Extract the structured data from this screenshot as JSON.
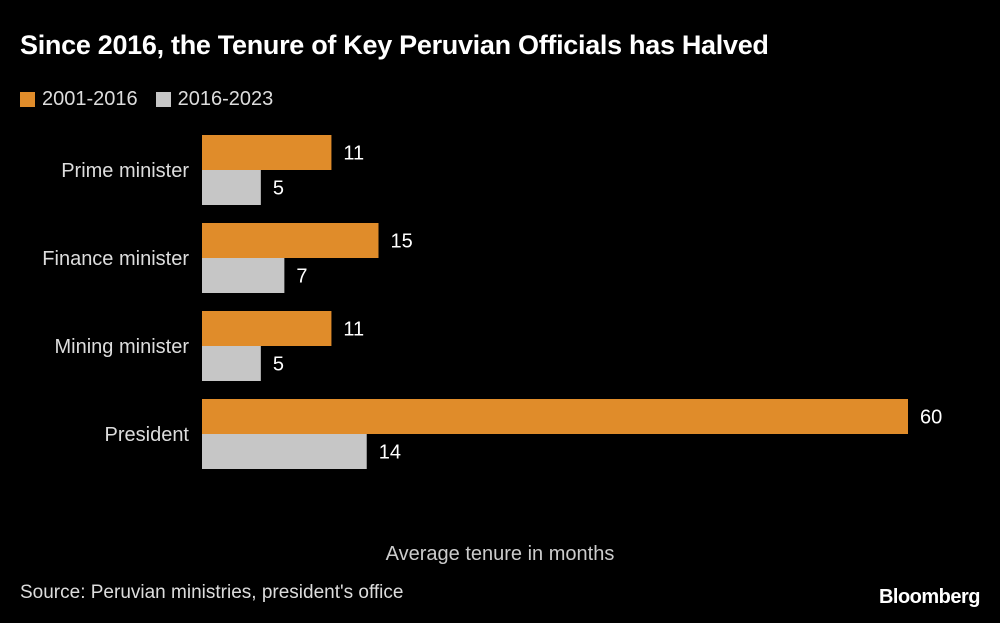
{
  "chart_data": {
    "type": "bar",
    "orientation": "horizontal",
    "title": "Since 2016, the Tenure of Key Peruvian Officials has Halved",
    "xlabel": "Average tenure in months",
    "categories": [
      "Prime minister",
      "Finance minister",
      "Mining minister",
      "President"
    ],
    "series": [
      {
        "name": "2001-2016",
        "values": [
          11,
          15,
          11,
          60
        ],
        "color": "#e08c2a"
      },
      {
        "name": "2016-2023",
        "values": [
          5,
          7,
          5,
          14
        ],
        "color": "#c6c6c6"
      }
    ],
    "xlim": [
      0,
      60
    ],
    "grid": false,
    "legend_placement": "top-left",
    "data_labels": true
  },
  "source": "Source: Peruvian ministries, president's office",
  "logo": "Bloomberg"
}
